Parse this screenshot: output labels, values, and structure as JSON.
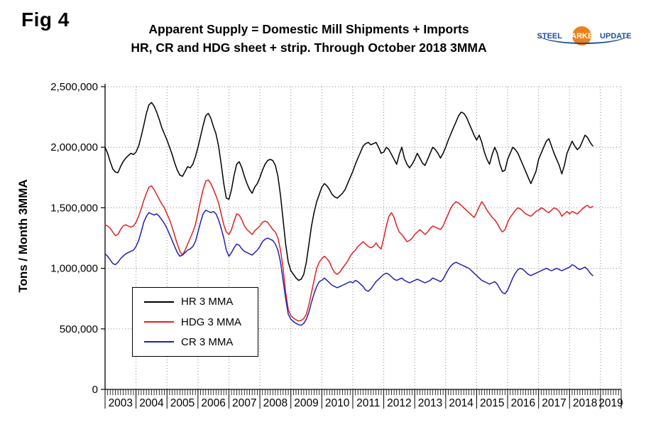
{
  "figure": {
    "label": "Fig 4"
  },
  "title": {
    "line1": "Apparent Supply = Domestic Mill Shipments + Imports",
    "line2": "HR, CR and HDG sheet + strip. Through October 2018 3MMA"
  },
  "logo": {
    "steel": "STEEL",
    "market": "MARKET",
    "update": "UPDATE",
    "accent_orange": "#f08019",
    "accent_blue": "#1b4f9c"
  },
  "chart_data": {
    "type": "line",
    "title": "Apparent Supply = Domestic Mill Shipments + Imports — HR, CR and HDG sheet + strip. Through October 2018 3MMA",
    "ylabel": "Tons / Month 3MMA",
    "y_axis": {
      "min": 0,
      "max": 2500000,
      "tick_interval": 500000,
      "tick_labels": [
        "0",
        "500,000",
        "1,000,000",
        "1,500,000",
        "2,000,000",
        "2,500,000"
      ]
    },
    "x_axis": {
      "start_month": "2003-01",
      "end_month": "2018-10",
      "months_shown": 190,
      "total_axis_months": 200,
      "year_labels": [
        "2003",
        "2004",
        "2005",
        "2006",
        "2007",
        "2008",
        "2009",
        "2010",
        "2011",
        "2012",
        "2013",
        "2014",
        "2015",
        "2016",
        "2017",
        "2018",
        "2019"
      ],
      "minor_ticks": "monthly",
      "grid": "dotted horizontal at each 500,000 and dotted vertical at each year boundary"
    },
    "values_note": "Monthly 3-month-moving-average values, Jan 2003 through Oct 2018, in thousands of tons (estimated from plot)",
    "values_scale": 1000,
    "legend": {
      "position": "inside-left-middle",
      "entries": [
        {
          "label": "HR 3 MMA",
          "color": "#000000"
        },
        {
          "label": "HDG 3 MMA",
          "color": "#e02020"
        },
        {
          "label": "CR 3 MMA",
          "color": "#2121b3"
        }
      ]
    },
    "series": [
      {
        "name": "HR 3 MMA",
        "color": "#000000",
        "values": [
          2000,
          1950,
          1880,
          1820,
          1795,
          1790,
          1840,
          1880,
          1910,
          1930,
          1950,
          1940,
          1960,
          2010,
          2090,
          2180,
          2280,
          2350,
          2370,
          2340,
          2290,
          2230,
          2160,
          2110,
          2060,
          2000,
          1940,
          1870,
          1810,
          1770,
          1760,
          1800,
          1840,
          1830,
          1860,
          1920,
          2000,
          2090,
          2180,
          2260,
          2280,
          2240,
          2170,
          2110,
          2010,
          1860,
          1700,
          1580,
          1570,
          1650,
          1770,
          1860,
          1880,
          1830,
          1760,
          1700,
          1650,
          1620,
          1670,
          1700,
          1750,
          1810,
          1860,
          1890,
          1900,
          1890,
          1850,
          1760,
          1600,
          1400,
          1200,
          1050,
          980,
          950,
          920,
          900,
          910,
          950,
          1050,
          1200,
          1350,
          1460,
          1550,
          1610,
          1670,
          1700,
          1680,
          1650,
          1610,
          1590,
          1580,
          1600,
          1620,
          1650,
          1700,
          1750,
          1800,
          1860,
          1910,
          1960,
          2010,
          2030,
          2040,
          2020,
          2030,
          2040,
          2000,
          1950,
          1960,
          2000,
          1980,
          1940,
          1900,
          1860,
          1940,
          2000,
          1910,
          1860,
          1830,
          1860,
          1900,
          1950,
          1910,
          1870,
          1850,
          1900,
          1950,
          2000,
          1980,
          1950,
          1910,
          1950,
          2000,
          2060,
          2110,
          2160,
          2210,
          2260,
          2290,
          2280,
          2250,
          2200,
          2150,
          2100,
          2060,
          2100,
          2040,
          1960,
          1900,
          1860,
          1940,
          2000,
          1950,
          1860,
          1800,
          1810,
          1900,
          1950,
          2000,
          1980,
          1950,
          1900,
          1850,
          1800,
          1750,
          1700,
          1750,
          1800,
          1900,
          1950,
          2000,
          2050,
          2070,
          2010,
          1950,
          1900,
          1850,
          1780,
          1850,
          1950,
          2000,
          2050,
          2010,
          1980,
          2000,
          2050,
          2100,
          2080,
          2040,
          2010
        ]
      },
      {
        "name": "HDG 3 MMA",
        "color": "#e02020",
        "values": [
          1360,
          1350,
          1330,
          1300,
          1270,
          1280,
          1320,
          1350,
          1360,
          1350,
          1340,
          1350,
          1380,
          1430,
          1490,
          1560,
          1620,
          1670,
          1680,
          1650,
          1610,
          1570,
          1530,
          1500,
          1450,
          1400,
          1340,
          1270,
          1200,
          1140,
          1110,
          1150,
          1200,
          1250,
          1300,
          1360,
          1460,
          1560,
          1650,
          1720,
          1730,
          1700,
          1650,
          1600,
          1540,
          1450,
          1360,
          1300,
          1280,
          1320,
          1390,
          1450,
          1440,
          1400,
          1350,
          1320,
          1300,
          1280,
          1310,
          1330,
          1350,
          1380,
          1390,
          1380,
          1350,
          1320,
          1300,
          1250,
          1150,
          1000,
          800,
          660,
          610,
          590,
          575,
          565,
          570,
          585,
          620,
          700,
          800,
          900,
          1000,
          1050,
          1080,
          1100,
          1080,
          1050,
          1000,
          965,
          950,
          970,
          1000,
          1030,
          1060,
          1100,
          1130,
          1150,
          1180,
          1200,
          1220,
          1200,
          1180,
          1170,
          1180,
          1210,
          1180,
          1160,
          1250,
          1350,
          1430,
          1460,
          1420,
          1350,
          1300,
          1280,
          1250,
          1220,
          1230,
          1250,
          1280,
          1300,
          1320,
          1300,
          1280,
          1300,
          1330,
          1350,
          1340,
          1330,
          1320,
          1350,
          1400,
          1450,
          1500,
          1530,
          1550,
          1540,
          1520,
          1500,
          1480,
          1460,
          1440,
          1420,
          1460,
          1510,
          1550,
          1520,
          1480,
          1450,
          1420,
          1400,
          1370,
          1330,
          1300,
          1320,
          1380,
          1420,
          1450,
          1480,
          1500,
          1490,
          1470,
          1450,
          1440,
          1430,
          1450,
          1470,
          1480,
          1500,
          1490,
          1470,
          1460,
          1480,
          1500,
          1490,
          1470,
          1430,
          1450,
          1470,
          1450,
          1470,
          1460,
          1450,
          1470,
          1490,
          1510,
          1520,
          1500,
          1510
        ]
      },
      {
        "name": "CR 3 MMA",
        "color": "#2121b3",
        "values": [
          1120,
          1100,
          1070,
          1040,
          1030,
          1050,
          1080,
          1100,
          1120,
          1130,
          1140,
          1150,
          1180,
          1230,
          1300,
          1380,
          1430,
          1460,
          1450,
          1440,
          1450,
          1430,
          1400,
          1370,
          1330,
          1280,
          1230,
          1180,
          1130,
          1100,
          1110,
          1130,
          1150,
          1160,
          1180,
          1220,
          1300,
          1380,
          1450,
          1480,
          1470,
          1460,
          1470,
          1450,
          1400,
          1330,
          1250,
          1150,
          1100,
          1130,
          1170,
          1200,
          1190,
          1160,
          1140,
          1130,
          1120,
          1110,
          1130,
          1150,
          1180,
          1220,
          1240,
          1250,
          1240,
          1230,
          1200,
          1150,
          1050,
          900,
          750,
          620,
          580,
          560,
          545,
          535,
          530,
          545,
          580,
          640,
          720,
          790,
          850,
          890,
          900,
          920,
          900,
          880,
          860,
          850,
          840,
          850,
          860,
          870,
          880,
          890,
          880,
          900,
          890,
          870,
          850,
          820,
          810,
          830,
          860,
          890,
          910,
          930,
          950,
          960,
          950,
          930,
          910,
          900,
          910,
          920,
          900,
          890,
          880,
          890,
          900,
          910,
          900,
          890,
          880,
          890,
          900,
          920,
          910,
          900,
          890,
          910,
          950,
          990,
          1020,
          1040,
          1050,
          1040,
          1030,
          1020,
          1010,
          1000,
          980,
          960,
          940,
          920,
          900,
          890,
          880,
          870,
          880,
          890,
          870,
          830,
          800,
          790,
          820,
          870,
          920,
          960,
          990,
          1000,
          990,
          970,
          950,
          940,
          950,
          960,
          970,
          980,
          990,
          1000,
          990,
          980,
          990,
          1000,
          990,
          980,
          990,
          1000,
          1010,
          1030,
          1020,
          1000,
          990,
          1000,
          1010,
          990,
          960,
          940
        ]
      }
    ]
  }
}
